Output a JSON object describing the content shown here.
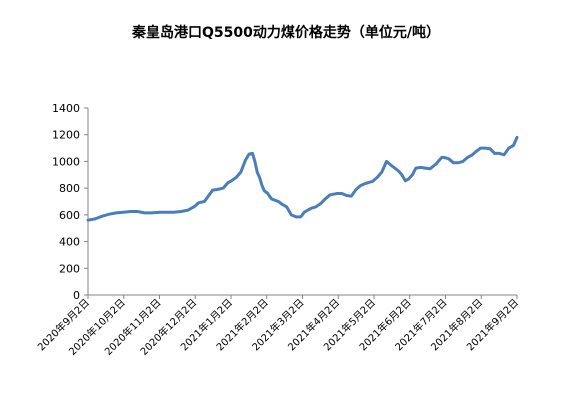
{
  "chart_data": {
    "type": "line",
    "title": "秦皇岛港口Q5500动力煤价格走势（单位元/吨）",
    "xlabel": "",
    "ylabel": "",
    "ylim": [
      0,
      1400
    ],
    "yticks": [
      0,
      200,
      400,
      600,
      800,
      1000,
      1200,
      1400
    ],
    "grid": false,
    "legend": "none",
    "x_tick_labels": [
      "2020年9月2日",
      "2020年10月2日",
      "2020年11月2日",
      "2020年12月2日",
      "2021年1月2日",
      "2021年2月2日",
      "2021年3月2日",
      "2021年4月2日",
      "2021年5月2日",
      "2021年6月2日",
      "2021年7月2日",
      "2021年8月2日",
      "2021年9月2日"
    ],
    "line_color": "#4a7ebb",
    "series": [
      {
        "x": [
          "2020-09-02",
          "2020-09-08",
          "2020-09-14",
          "2020-09-20",
          "2020-09-26",
          "2020-10-02",
          "2020-10-08",
          "2020-10-14",
          "2020-10-20",
          "2020-10-26",
          "2020-11-02",
          "2020-11-08",
          "2020-11-14",
          "2020-11-20",
          "2020-11-26",
          "2020-12-02",
          "2020-12-05",
          "2020-12-10",
          "2020-12-15",
          "2020-12-17",
          "2020-12-21",
          "2020-12-26",
          "2020-12-30",
          "2021-01-02",
          "2021-01-06",
          "2021-01-10",
          "2021-01-14",
          "2021-01-17",
          "2021-01-20",
          "2021-01-22",
          "2021-01-24",
          "2021-01-26",
          "2021-01-28",
          "2021-01-30",
          "2021-02-02",
          "2021-02-05",
          "2021-02-08",
          "2021-02-11",
          "2021-02-14",
          "2021-02-18",
          "2021-02-22",
          "2021-02-26",
          "2021-03-02",
          "2021-03-05",
          "2021-03-08",
          "2021-03-11",
          "2021-03-15",
          "2021-03-19",
          "2021-03-23",
          "2021-03-27",
          "2021-04-02",
          "2021-04-06",
          "2021-04-10",
          "2021-04-14",
          "2021-04-18",
          "2021-04-22",
          "2021-04-26",
          "2021-04-30",
          "2021-05-02",
          "2021-05-06",
          "2021-05-10",
          "2021-05-14",
          "2021-05-18",
          "2021-05-21",
          "2021-05-24",
          "2021-05-27",
          "2021-05-30",
          "2021-06-02",
          "2021-06-05",
          "2021-06-08",
          "2021-06-12",
          "2021-06-16",
          "2021-06-20",
          "2021-06-25",
          "2021-06-30",
          "2021-07-02",
          "2021-07-06",
          "2021-07-10",
          "2021-07-14",
          "2021-07-18",
          "2021-07-22",
          "2021-07-26",
          "2021-07-30",
          "2021-08-02",
          "2021-08-06",
          "2021-08-10",
          "2021-08-14",
          "2021-08-18",
          "2021-08-22",
          "2021-08-26",
          "2021-08-30",
          "2021-09-02"
        ],
        "values": [
          560,
          570,
          590,
          605,
          615,
          620,
          625,
          625,
          615,
          615,
          620,
          620,
          620,
          625,
          635,
          665,
          690,
          700,
          760,
          785,
          790,
          800,
          840,
          855,
          880,
          920,
          1010,
          1055,
          1060,
          1000,
          920,
          880,
          820,
          780,
          760,
          720,
          710,
          700,
          680,
          660,
          600,
          585,
          585,
          620,
          635,
          650,
          660,
          685,
          720,
          750,
          760,
          760,
          745,
          740,
          790,
          820,
          835,
          845,
          850,
          880,
          920,
          1000,
          970,
          950,
          930,
          900,
          855,
          870,
          900,
          950,
          955,
          950,
          945,
          980,
          1030,
          1030,
          1020,
          990,
          990,
          1000,
          1030,
          1050,
          1080,
          1100,
          1100,
          1095,
          1060,
          1060,
          1050,
          1100,
          1120,
          1180
        ]
      }
    ]
  }
}
